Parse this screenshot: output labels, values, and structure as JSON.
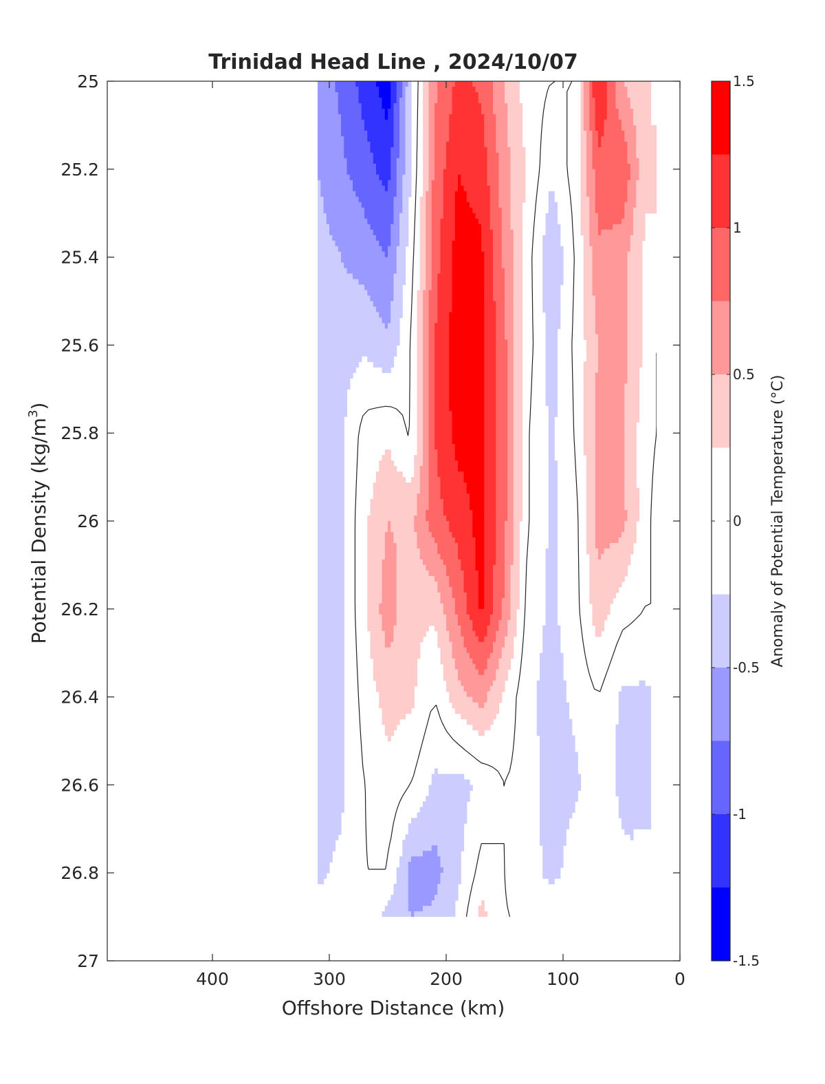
{
  "chart_data": {
    "type": "filled-contour",
    "title": "Trinidad Head Line , 2024/10/07",
    "xlabel": "Offshore Distance (km)",
    "ylabel_main": "Potential Density (kg/m",
    "ylabel_sup": "3",
    "ylabel_close": ")",
    "xlim": [
      490,
      0
    ],
    "ylim": [
      25,
      27
    ],
    "x_reversed": true,
    "y_reversed": true,
    "x_ticks": [
      400,
      300,
      200,
      100,
      0
    ],
    "x_tick_labels": [
      "400",
      "300",
      "200",
      "100",
      "0"
    ],
    "y_ticks": [
      25,
      25.2,
      25.4,
      25.6,
      25.8,
      26,
      26.2,
      26.4,
      26.6,
      26.8,
      27
    ],
    "y_tick_labels": [
      "25",
      "25.2",
      "25.4",
      "25.6",
      "25.8",
      "26",
      "26.2",
      "26.4",
      "26.6",
      "26.8",
      "27"
    ],
    "colorbar": {
      "label": "Anomaly of Potential Temperature (°C)",
      "range": [
        -1.5,
        1.5
      ],
      "levels": [
        -1.5,
        -1.25,
        -1.0,
        -0.75,
        -0.5,
        -0.25,
        0.25,
        0.5,
        0.75,
        1.0,
        1.25,
        1.5
      ],
      "colors": [
        "#0000ff",
        "#3333ff",
        "#6666ff",
        "#9999ff",
        "#ccccff",
        "#ffffff",
        "#ffcccc",
        "#ff9999",
        "#ff6666",
        "#ff3333",
        "#ff0000"
      ],
      "ticks": [
        -1.5,
        -1,
        -0.5,
        0,
        0.5,
        1,
        1.5
      ],
      "tick_labels": [
        "-1.5",
        "-1",
        "-0.5",
        "0",
        "0.5",
        "1",
        "1.5"
      ]
    },
    "data_extent": {
      "x_min": 20,
      "x_max": 310,
      "y_min": 25,
      "y_max": 26.9
    },
    "grid": {
      "x": [
        310,
        290,
        270,
        250,
        230,
        210,
        190,
        170,
        150,
        130,
        110,
        90,
        70,
        50,
        30,
        20
      ],
      "y": [
        25.0,
        25.2,
        25.4,
        25.6,
        25.8,
        26.0,
        26.2,
        26.4,
        26.6,
        26.8,
        26.9
      ],
      "values": [
        [
          -0.6,
          -0.8,
          -1.1,
          -1.4,
          -0.3,
          0.7,
          1.05,
          0.95,
          0.5,
          0.1,
          0.0,
          0.0,
          1.3,
          0.5,
          0.3,
          null
        ],
        [
          -0.5,
          -0.7,
          -0.9,
          -1.1,
          -0.25,
          0.8,
          1.25,
          1.15,
          0.6,
          0.2,
          -0.2,
          0.1,
          0.9,
          1.0,
          0.3,
          0.3
        ],
        [
          -0.4,
          -0.5,
          -0.6,
          -0.75,
          -0.1,
          0.9,
          1.35,
          1.3,
          0.7,
          0.1,
          -0.5,
          0.0,
          0.7,
          0.6,
          0.2,
          0.2
        ],
        [
          -0.3,
          -0.35,
          -0.3,
          -0.45,
          0.0,
          1.0,
          1.4,
          1.35,
          0.8,
          0.1,
          -0.35,
          0.05,
          0.5,
          0.6,
          0.2,
          0.0
        ],
        [
          -0.3,
          -0.3,
          0.1,
          0.2,
          -0.05,
          1.0,
          1.35,
          1.3,
          0.85,
          0.0,
          -0.3,
          0.0,
          0.6,
          0.55,
          0.1,
          0.0
        ],
        [
          -0.3,
          -0.3,
          0.2,
          0.5,
          0.45,
          0.9,
          1.1,
          1.35,
          0.8,
          0.0,
          -0.3,
          -0.1,
          0.6,
          0.6,
          0.1,
          -0.1
        ],
        [
          -0.3,
          -0.3,
          0.2,
          0.65,
          0.3,
          0.3,
          0.8,
          1.3,
          0.7,
          -0.1,
          -0.3,
          -0.1,
          0.4,
          0.1,
          0.0,
          0.0
        ],
        [
          -0.3,
          -0.3,
          0.1,
          0.35,
          0.3,
          0.0,
          0.4,
          0.6,
          0.2,
          -0.2,
          -0.35,
          -0.2,
          0.0,
          -0.3,
          -0.3,
          null
        ],
        [
          -0.3,
          -0.3,
          0.0,
          0.15,
          0.0,
          -0.3,
          -0.35,
          -0.2,
          0.0,
          -0.1,
          -0.4,
          -0.3,
          -0.1,
          -0.3,
          -0.3,
          null
        ],
        [
          -0.3,
          -0.2,
          0.0,
          0.0,
          -0.6,
          -0.6,
          -0.3,
          0.1,
          0.0,
          -0.1,
          -0.35,
          -0.1,
          -0.1,
          -0.2,
          null,
          null
        ],
        [
          -0.15,
          -0.1,
          0.0,
          -0.35,
          -0.5,
          -0.45,
          -0.2,
          0.35,
          0.0,
          0.0,
          0.0,
          0.0,
          0.0,
          null,
          null,
          null
        ]
      ]
    }
  }
}
